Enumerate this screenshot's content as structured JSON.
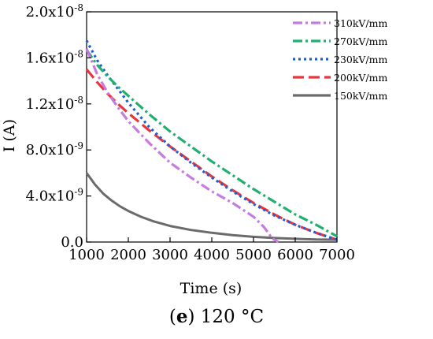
{
  "caption": {
    "letter": "e",
    "text": " 120 °C"
  },
  "chart_data": {
    "type": "line",
    "title": "",
    "xlabel": "Time (s)",
    "ylabel": "I (A)",
    "xlim": [
      1000,
      7000
    ],
    "ylim": [
      0,
      2e-08
    ],
    "xticks": [
      1000,
      2000,
      3000,
      4000,
      5000,
      6000,
      7000
    ],
    "xtick_labels": [
      "1000",
      "2000",
      "3000",
      "4000",
      "5000",
      "6000",
      "7000"
    ],
    "yticks": [
      0,
      4e-09,
      8e-09,
      1.2e-08,
      1.6e-08,
      2e-08
    ],
    "ytick_labels": [
      "0.0",
      "4.0x10-9",
      "8.0x10-9",
      "1.2x10-8",
      "1.6x10-8",
      "2.0x10-8"
    ],
    "grid": false,
    "legend_position": "top-right",
    "series": [
      {
        "name": "310kV/mm",
        "color": "#c77ae0",
        "dash": "dash-dot",
        "x": [
          1000,
          1250,
          1500,
          1750,
          2000,
          2500,
          3000,
          3500,
          4000,
          4500,
          5000,
          5250,
          5450,
          5600
        ],
        "y": [
          1.68e-08,
          1.46e-08,
          1.3e-08,
          1.17e-08,
          1.05e-08,
          8.6e-09,
          6.9e-09,
          5.6e-09,
          4.4e-09,
          3.4e-09,
          2.2e-09,
          1.3e-09,
          3e-10,
          0
        ]
      },
      {
        "name": "270kV/mm",
        "color": "#1faf6e",
        "dash": "dash-dot",
        "x": [
          1000,
          1250,
          1500,
          1750,
          2000,
          2500,
          3000,
          3500,
          4000,
          4500,
          5000,
          5500,
          6000,
          6500,
          7000
        ],
        "y": [
          1.67e-08,
          1.54e-08,
          1.44e-08,
          1.35e-08,
          1.27e-08,
          1.11e-08,
          9.6e-09,
          8.3e-09,
          7e-09,
          5.8e-09,
          4.6e-09,
          3.5e-09,
          2.4e-09,
          1.5e-09,
          5e-10
        ]
      },
      {
        "name": "230kV/mm",
        "color": "#1f5fd6",
        "dash": "dot",
        "x": [
          1000,
          1250,
          1500,
          1750,
          2000,
          2500,
          3000,
          3500,
          4000,
          4500,
          5000,
          5500,
          6000,
          6500,
          7000
        ],
        "y": [
          1.75e-08,
          1.58e-08,
          1.45e-08,
          1.33e-08,
          1.21e-08,
          1e-08,
          8.3e-09,
          6.9e-09,
          5.6e-09,
          4.4e-09,
          3.3e-09,
          2.3e-09,
          1.5e-09,
          8e-10,
          2e-10
        ]
      },
      {
        "name": "200kV/mm",
        "color": "#e8363b",
        "dash": "dash",
        "x": [
          1000,
          1250,
          1500,
          1750,
          2000,
          2500,
          3000,
          3500,
          4000,
          4500,
          5000,
          5500,
          6000,
          6500,
          7000
        ],
        "y": [
          1.5e-08,
          1.39e-08,
          1.29e-08,
          1.2e-08,
          1.12e-08,
          9.7e-09,
          8.3e-09,
          7e-09,
          5.7e-09,
          4.5e-09,
          3.4e-09,
          2.4e-09,
          1.5e-09,
          8e-10,
          2e-10
        ]
      },
      {
        "name": "150kV/mm",
        "color": "#6b6b6b",
        "dash": "solid",
        "x": [
          1000,
          1200,
          1400,
          1600,
          1800,
          2000,
          2300,
          2600,
          3000,
          3500,
          4000,
          4500,
          5000,
          5500,
          6000,
          6500,
          7000
        ],
        "y": [
          6e-09,
          5e-09,
          4.2e-09,
          3.6e-09,
          3.1e-09,
          2.7e-09,
          2.2e-09,
          1.8e-09,
          1.4e-09,
          1.05e-09,
          8e-10,
          6e-10,
          4.5e-10,
          3.5e-10,
          2.8e-10,
          2.2e-10,
          2e-10
        ]
      }
    ]
  }
}
